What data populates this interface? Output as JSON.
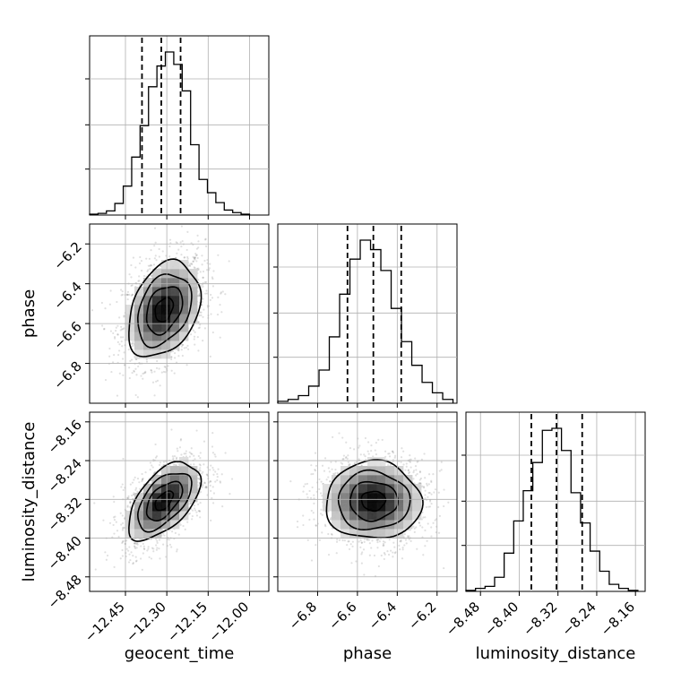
{
  "colors": {
    "hist": "#000000",
    "grid": "#b0b0b0",
    "scatter": "#000000",
    "density": "#000000"
  },
  "chart_data": {
    "type": "corner",
    "parameters": [
      "geocent_time",
      "phase",
      "luminosity_distance"
    ],
    "xlabels": [
      "geocent_time",
      "phase",
      "luminosity_distance"
    ],
    "ylabels": [
      "",
      "phase",
      "luminosity_distance"
    ],
    "ranges": [
      [
        -12.58,
        -11.93
      ],
      [
        -7.0,
        -6.1
      ],
      [
        -8.51,
        -8.14
      ]
    ],
    "ticks": {
      "geocent_time": {
        "values": [
          -12.45,
          -12.3,
          -12.15,
          -12.0
        ],
        "labels": [
          "−12.45",
          "−12.30",
          "−12.15",
          "−12.00"
        ]
      },
      "phase": {
        "values": [
          -6.8,
          -6.6,
          -6.4,
          -6.2
        ],
        "labels": [
          "−6.8",
          "−6.6",
          "−6.4",
          "−6.2"
        ]
      },
      "luminosity_distance": {
        "values": [
          -8.48,
          -8.4,
          -8.32,
          -8.24,
          -8.16
        ],
        "labels": [
          "−8.48",
          "−8.40",
          "−8.32",
          "−8.24",
          "−8.16"
        ]
      }
    },
    "quantiles": {
      "geocent_time": [
        -12.39,
        -12.32,
        -12.25
      ],
      "phase": [
        -6.65,
        -6.52,
        -6.38
      ],
      "luminosity_distance": [
        -8.375,
        -8.323,
        -8.27
      ]
    },
    "histograms": {
      "geocent_time": [
        1,
        2,
        5,
        14,
        35,
        70,
        108,
        155,
        180,
        197,
        182,
        150,
        85,
        43,
        27,
        15,
        6,
        3,
        1
      ],
      "phase": [
        2,
        4,
        8,
        18,
        35,
        70,
        115,
        152,
        172,
        162,
        140,
        100,
        65,
        40,
        22,
        11,
        4
      ],
      "luminosity_distance": [
        1,
        3,
        5,
        14,
        38,
        70,
        100,
        128,
        160,
        162,
        140,
        98,
        68,
        40,
        20,
        7,
        3,
        1
      ]
    },
    "pairs": [
      {
        "x": "geocent_time",
        "y": "phase",
        "center": [
          -12.31,
          -6.53
        ],
        "sigma": [
          0.065,
          0.12
        ],
        "rho": 0.32
      },
      {
        "x": "geocent_time",
        "y": "luminosity_distance",
        "center": [
          -12.31,
          -8.323
        ],
        "sigma": [
          0.065,
          0.04
        ],
        "rho": 0.55
      },
      {
        "x": "phase",
        "y": "luminosity_distance",
        "center": [
          -6.52,
          -8.323
        ],
        "sigma": [
          0.12,
          0.04
        ],
        "rho": 0.0
      }
    ],
    "contour_levels_sigma": [
      0.5,
      1.0,
      1.5,
      2.0
    ],
    "grid": true
  }
}
